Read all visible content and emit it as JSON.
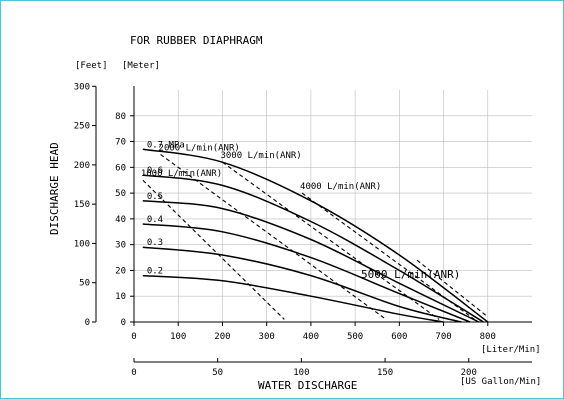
{
  "chart_data": {
    "type": "line",
    "title": "FOR RUBBER DIAPHRAGM",
    "xlabel": "WATER  DISCHARGE",
    "ylabel": "DISCHARGE  HEAD",
    "x_unit_lpm": "[Liter/Min]",
    "x_unit_usgal": "[US Gallon/Min]",
    "y_unit_feet": "[Feet]",
    "y_unit_meter": "[Meter]",
    "xlim": [
      0,
      900
    ],
    "ylim_meter": [
      0,
      90
    ],
    "ylim_feet": [
      0,
      300
    ],
    "grid": true,
    "ticks_lpm": [
      "0",
      "100",
      "200",
      "300",
      "400",
      "500",
      "600",
      "700",
      "800"
    ],
    "ticks_lpm_values": [
      0,
      100,
      200,
      300,
      400,
      500,
      600,
      700,
      800
    ],
    "ticks_meter": [
      "0",
      "10",
      "20",
      "30",
      "40",
      "50",
      "60",
      "70",
      "80"
    ],
    "ticks_meter_values": [
      0,
      10,
      20,
      30,
      40,
      50,
      60,
      70,
      80
    ],
    "ticks_feet": [
      "0",
      "50",
      "100",
      "150",
      "200",
      "250",
      "300"
    ],
    "ticks_feet_values": [
      0,
      50,
      100,
      150,
      200,
      250,
      300
    ],
    "ticks_usgal": [
      "0",
      "50",
      "100",
      "150",
      "200"
    ],
    "ticks_usgal_values": [
      0,
      50,
      100,
      150,
      200
    ],
    "pressure_series": [
      {
        "name": "0.7 MPa",
        "x": [
          20,
          200,
          400,
          600,
          800
        ],
        "y": [
          67,
          62,
          47,
          26,
          0
        ]
      },
      {
        "name": "0.6",
        "x": [
          20,
          200,
          400,
          600,
          790
        ],
        "y": [
          57,
          53,
          39,
          20,
          0
        ]
      },
      {
        "name": "0.5",
        "x": [
          20,
          200,
          400,
          600,
          780
        ],
        "y": [
          47,
          44,
          32,
          15,
          0
        ]
      },
      {
        "name": "0.4",
        "x": [
          20,
          200,
          400,
          600,
          760
        ],
        "y": [
          38,
          35,
          25,
          11,
          0
        ]
      },
      {
        "name": "0.3",
        "x": [
          20,
          200,
          400,
          600,
          740
        ],
        "y": [
          29,
          26,
          18,
          6,
          0
        ]
      },
      {
        "name": "0.2",
        "x": [
          20,
          200,
          400,
          600,
          700
        ],
        "y": [
          18,
          16,
          10,
          3,
          0
        ]
      }
    ],
    "air_consumption_series": [
      {
        "name": "1000 L/min(ANR)",
        "x": [
          20,
          340
        ],
        "y": [
          55,
          1
        ]
      },
      {
        "name": "2000 L/min(ANR)",
        "x": [
          60,
          570
        ],
        "y": [
          65,
          1
        ]
      },
      {
        "name": "3000 L/min(ANR)",
        "x": [
          200,
          690
        ],
        "y": [
          62,
          1
        ]
      },
      {
        "name": "4000 L/min(ANR)",
        "x": [
          380,
          770
        ],
        "y": [
          50,
          1
        ]
      },
      {
        "name": "5000 L/min(ANR)",
        "x": [
          640,
          800
        ],
        "y": [
          24,
          2
        ]
      }
    ]
  }
}
